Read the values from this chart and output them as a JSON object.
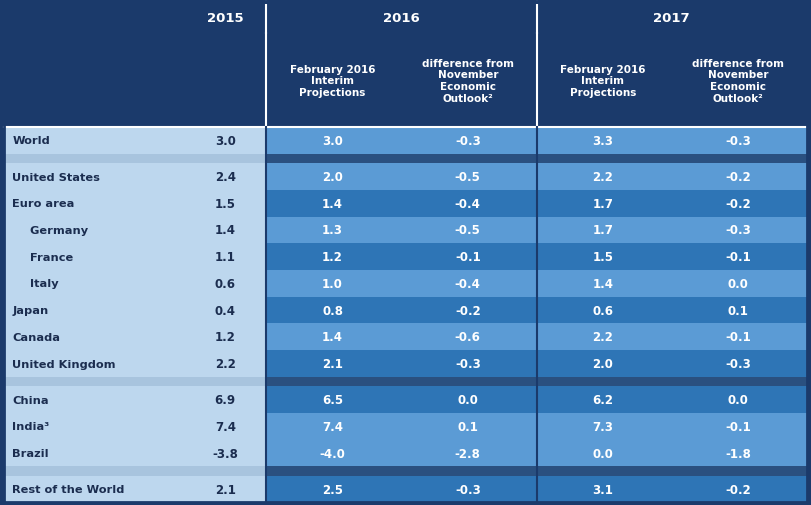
{
  "col_headers_row2": [
    "",
    "",
    "February 2016\nInterim\nProjections",
    "difference from\nNovember\nEconomic\nOutlook²",
    "February 2016\nInterim\nProjections",
    "difference from\nNovember\nEconomic\nOutlook²"
  ],
  "rows": [
    {
      "label": "World",
      "indent": 0,
      "v2015": "3.0",
      "v2016a": "3.0",
      "v2016b": "-0.3",
      "v2017a": "3.3",
      "v2017b": "-0.3",
      "spacer_after": true
    },
    {
      "label": "United States",
      "indent": 0,
      "v2015": "2.4",
      "v2016a": "2.0",
      "v2016b": "-0.5",
      "v2017a": "2.2",
      "v2017b": "-0.2",
      "spacer_after": false
    },
    {
      "label": "Euro area",
      "indent": 0,
      "v2015": "1.5",
      "v2016a": "1.4",
      "v2016b": "-0.4",
      "v2017a": "1.7",
      "v2017b": "-0.2",
      "spacer_after": false
    },
    {
      "label": "  Germany",
      "indent": 1,
      "v2015": "1.4",
      "v2016a": "1.3",
      "v2016b": "-0.5",
      "v2017a": "1.7",
      "v2017b": "-0.3",
      "spacer_after": false
    },
    {
      "label": "  France",
      "indent": 1,
      "v2015": "1.1",
      "v2016a": "1.2",
      "v2016b": "-0.1",
      "v2017a": "1.5",
      "v2017b": "-0.1",
      "spacer_after": false
    },
    {
      "label": "  Italy",
      "indent": 1,
      "v2015": "0.6",
      "v2016a": "1.0",
      "v2016b": "-0.4",
      "v2017a": "1.4",
      "v2017b": "0.0",
      "spacer_after": false
    },
    {
      "label": "Japan",
      "indent": 0,
      "v2015": "0.4",
      "v2016a": "0.8",
      "v2016b": "-0.2",
      "v2017a": "0.6",
      "v2017b": "0.1",
      "spacer_after": false
    },
    {
      "label": "Canada",
      "indent": 0,
      "v2015": "1.2",
      "v2016a": "1.4",
      "v2016b": "-0.6",
      "v2017a": "2.2",
      "v2017b": "-0.1",
      "spacer_after": false
    },
    {
      "label": "United Kingdom",
      "indent": 0,
      "v2015": "2.2",
      "v2016a": "2.1",
      "v2016b": "-0.3",
      "v2017a": "2.0",
      "v2017b": "-0.3",
      "spacer_after": true
    },
    {
      "label": "China",
      "indent": 0,
      "v2015": "6.9",
      "v2016a": "6.5",
      "v2016b": "0.0",
      "v2017a": "6.2",
      "v2017b": "0.0",
      "spacer_after": false
    },
    {
      "label": "India³",
      "indent": 0,
      "v2015": "7.4",
      "v2016a": "7.4",
      "v2016b": "0.1",
      "v2017a": "7.3",
      "v2017b": "-0.1",
      "spacer_after": false
    },
    {
      "label": "Brazil",
      "indent": 0,
      "v2015": "-3.8",
      "v2016a": "-4.0",
      "v2016b": "-2.8",
      "v2017a": "0.0",
      "v2017b": "-1.8",
      "spacer_after": true
    },
    {
      "label": "Rest of the World",
      "indent": 0,
      "v2015": "2.1",
      "v2016a": "2.5",
      "v2016b": "-0.3",
      "v2017a": "3.1",
      "v2017b": "-0.2",
      "spacer_after": false
    }
  ],
  "colors": {
    "header_dark": "#1B3A6B",
    "label_col_bg": "#BDD7EE",
    "val2015_bg": "#BDD7EE",
    "data_light": "#5B9BD5",
    "data_dark": "#2E75B6",
    "spacer_label": "#9EB8D5",
    "spacer_data": "#2F5F8F",
    "label_text": "#1B2D4F",
    "val2015_text": "#1B2D4F",
    "data_text": "#FFFFFF",
    "white": "#FFFFFF"
  },
  "row_data_colors": [
    "light",
    "light",
    "dark",
    "light",
    "dark",
    "light",
    "dark",
    "light",
    "dark",
    "dark",
    "light",
    "light",
    "dark"
  ]
}
